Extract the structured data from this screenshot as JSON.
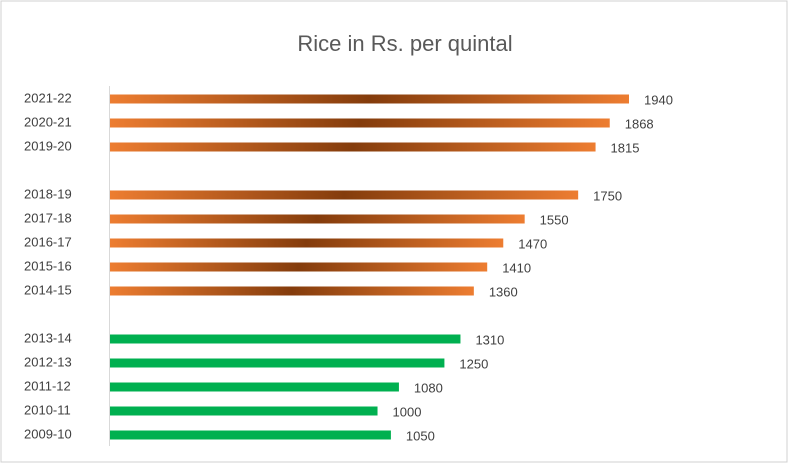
{
  "chart_data": {
    "type": "hbar",
    "title": "Rice in Rs. per quintal",
    "categories": [
      "2021-22",
      "2020-21",
      "2019-20",
      null,
      "2018-19",
      "2017-18",
      "2016-17",
      "2015-16",
      "2014-15",
      null,
      "2013-14",
      "2012-13",
      "2011-12",
      "2010-11",
      "2009-10"
    ],
    "values": [
      1940,
      1868,
      1815,
      null,
      1750,
      1550,
      1470,
      1410,
      1360,
      null,
      1310,
      1250,
      1080,
      1000,
      1050
    ],
    "colors": [
      "#ed7d31",
      "#ed7d31",
      "#ed7d31",
      null,
      "#ed7d31",
      "#ed7d31",
      "#ed7d31",
      "#ed7d31",
      "#ed7d31",
      null,
      "#00b050",
      "#00b050",
      "#00b050",
      "#00b050",
      "#00b050"
    ],
    "gradient_center": {
      "#ed7d31": "#843c0c"
    }
  }
}
